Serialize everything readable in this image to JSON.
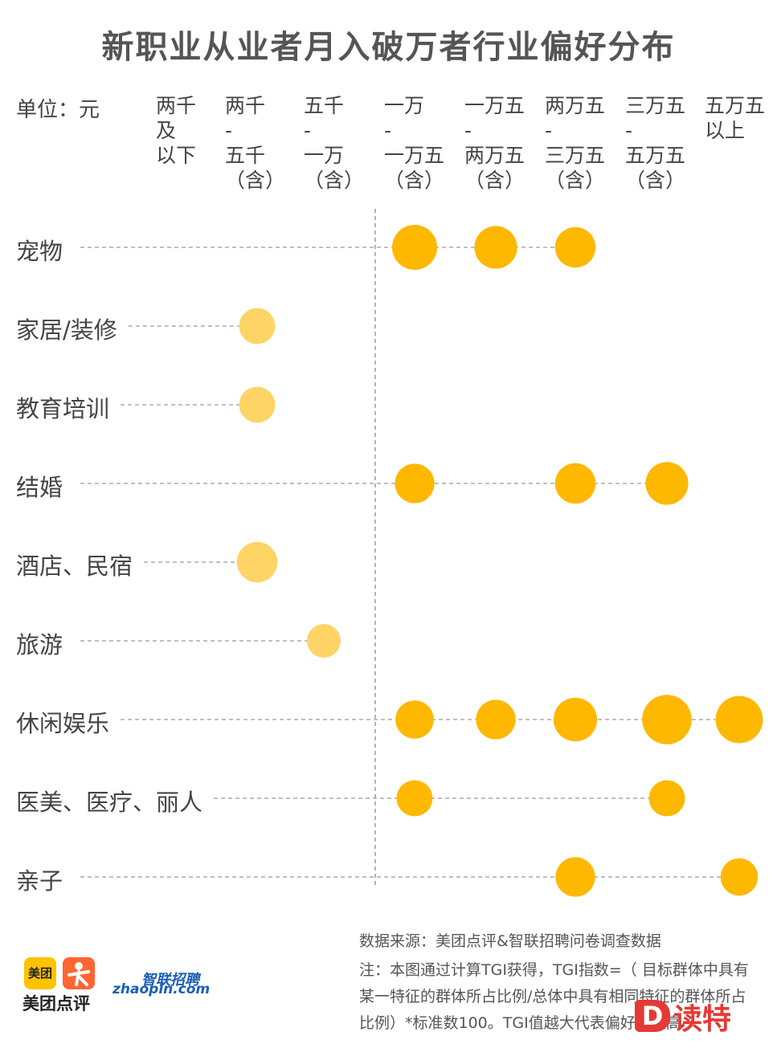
{
  "title": "新职业从业者月入破万者行业偏好分布",
  "unit_label": "单位：元",
  "chart_data": {
    "type": "scatter",
    "title": "新职业从业者月入破万者行业偏好分布",
    "unit": "单位：元",
    "columns": [
      "两千\n及\n以下",
      "两千\n-\n五千\n（含）",
      "五千\n-\n一万\n（含）",
      "一万\n-\n一万五\n（含）",
      "一万五\n-\n两万五\n（含）",
      "两万五\n-\n三万五\n（含）",
      "三万五\n-\n五万五\n（含）",
      "五万五\n以上"
    ],
    "categories": [
      "宠物",
      "家居/装修",
      "教育培训",
      "结婚",
      "酒店、民宿",
      "旅游",
      "休闲娱乐",
      "医美、医疗、丽人",
      "亲子"
    ],
    "points": [
      {
        "category": "宠物",
        "column": 3,
        "size": 1.0
      },
      {
        "category": "宠物",
        "column": 4,
        "size": 0.95
      },
      {
        "category": "宠物",
        "column": 5,
        "size": 0.9
      },
      {
        "category": "家居/装修",
        "column": 1,
        "size": 0.8
      },
      {
        "category": "教育培训",
        "column": 1,
        "size": 0.8
      },
      {
        "category": "结婚",
        "column": 3,
        "size": 0.88
      },
      {
        "category": "结婚",
        "column": 5,
        "size": 0.9
      },
      {
        "category": "结婚",
        "column": 6,
        "size": 0.95
      },
      {
        "category": "酒店、民宿",
        "column": 1,
        "size": 0.9
      },
      {
        "category": "旅游",
        "column": 2,
        "size": 0.75
      },
      {
        "category": "休闲娱乐",
        "column": 3,
        "size": 0.85
      },
      {
        "category": "休闲娱乐",
        "column": 4,
        "size": 0.88
      },
      {
        "category": "休闲娱乐",
        "column": 5,
        "size": 0.97
      },
      {
        "category": "休闲娱乐",
        "column": 6,
        "size": 1.1
      },
      {
        "category": "休闲娱乐",
        "column": 7,
        "size": 1.05
      },
      {
        "category": "医美、医疗、丽人",
        "column": 3,
        "size": 0.8
      },
      {
        "category": "医美、医疗、丽人",
        "column": 6,
        "size": 0.8
      },
      {
        "category": "亲子",
        "column": 5,
        "size": 0.88
      },
      {
        "category": "亲子",
        "column": 7,
        "size": 0.83
      }
    ],
    "colors": {
      "high": "#FFB800",
      "low": "#FFD466",
      "line": "#9a9a9a"
    }
  },
  "footer": {
    "source": "数据来源：美团点评&智联招聘问卷调查数据",
    "note1": "注：本图通过计算TGI获得，TGI指数=（ 目标群体中具有",
    "note2": "某一特征的群体所占比例/总体中具有相同特征的群体所占",
    "note3": "比例）*标准数100。TGI值越大代表偏好度越高"
  },
  "brands": {
    "meituan_badge": "美团",
    "meituan_dianping": "美团点评",
    "zhaopin_cn": "智联招聘",
    "zhaopin_en": "zhaopin.com"
  },
  "watermark": {
    "d": "D",
    "text": "读特"
  }
}
